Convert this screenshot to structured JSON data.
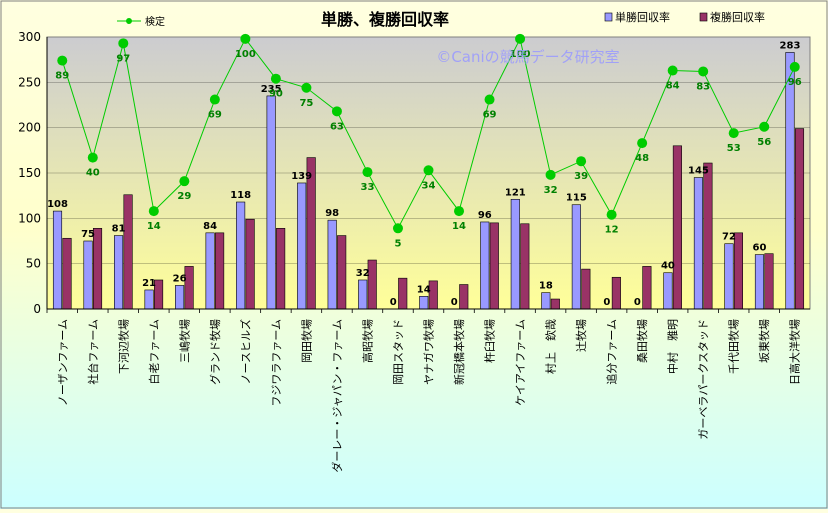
{
  "chart_data": {
    "type": "bar",
    "title": "単勝、複勝回収率",
    "watermark": "©Caniの競馬データ研究室",
    "ylim": [
      0,
      300
    ],
    "yticks": [
      0,
      50,
      100,
      150,
      200,
      250,
      300
    ],
    "grid": true,
    "legend_position": "top",
    "categories": [
      "ノーザンファーム",
      "社台ファーム",
      "下河辺牧場",
      "白老ファーム",
      "三嶋牧場",
      "グランド牧場",
      "ノースヒルズ",
      "フジワラファーム",
      "岡田牧場",
      "ダーレー・ジャパン・ファーム",
      "高昭牧場",
      "岡田スタッド",
      "ヤナガワ牧場",
      "新冠橋本牧場",
      "杵臼牧場",
      "ケイアイファーム",
      "村上　欽哉",
      "辻牧場",
      "追分ファーム",
      "桑田牧場",
      "中村　雅明",
      "ガーベラパークスタッド",
      "千代田牧場",
      "坂東牧場",
      "日高大洋牧場"
    ],
    "series": [
      {
        "name": "単勝回収率",
        "kind": "bar",
        "color": "#9999ff",
        "values": [
          108,
          75,
          81,
          21,
          26,
          84,
          118,
          235,
          139,
          98,
          32,
          0,
          14,
          0,
          96,
          121,
          18,
          115,
          0,
          0,
          40,
          145,
          72,
          60,
          283
        ],
        "labels": [
          "108",
          "75",
          "81",
          "21",
          "26",
          "84",
          "118",
          "235",
          "139",
          "98",
          "32",
          "0",
          "14",
          "0",
          "96",
          "121",
          "18",
          "115",
          "0",
          "0",
          "40",
          "145",
          "72",
          "60",
          "283"
        ]
      },
      {
        "name": "複勝回収率",
        "kind": "bar",
        "color": "#993366",
        "values": [
          78,
          89,
          126,
          32,
          47,
          84,
          99,
          89,
          167,
          81,
          54,
          34,
          31,
          27,
          95,
          94,
          11,
          44,
          35,
          47,
          180,
          161,
          84,
          61,
          199
        ]
      },
      {
        "name": "検定",
        "kind": "line",
        "color": "#00cc00",
        "label_color": "#008000",
        "values": [
          274,
          167,
          293,
          108,
          141,
          231,
          298,
          254,
          244,
          218,
          151,
          89,
          153,
          108,
          231,
          298,
          148,
          163,
          104,
          183,
          263,
          262,
          194,
          201,
          267
        ],
        "labels": [
          "89",
          "40",
          "97",
          "14",
          "29",
          "69",
          "100",
          "90",
          "75",
          "63",
          "33",
          "5",
          "34",
          "14",
          "69",
          "100",
          "32",
          "39",
          "12",
          "48",
          "84",
          "83",
          "53",
          "56",
          "96"
        ]
      }
    ]
  },
  "colors": {
    "plot_bg_top": "#ccccd0",
    "plot_bg_bottom": "#ffff99",
    "border": "#808080"
  }
}
